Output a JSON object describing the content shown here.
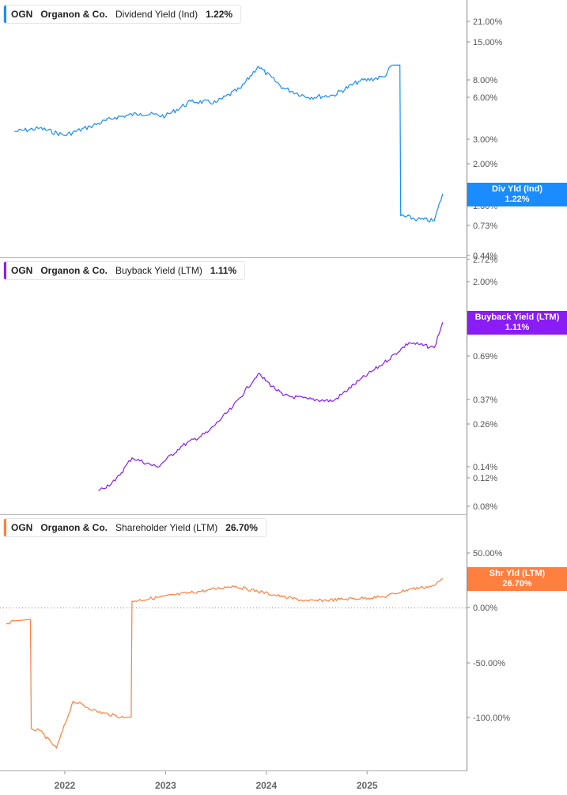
{
  "panels": [
    {
      "legend": {
        "ticker": "OGN",
        "company": "Organon & Co.",
        "metric": "Dividend Yield (Ind)",
        "value": "1.22%"
      },
      "tag": {
        "line1": "Div Yld (Ind)",
        "line2": "1.22%"
      },
      "color": "#1a8cff"
    },
    {
      "legend": {
        "ticker": "OGN",
        "company": "Organon & Co.",
        "metric": "Buyback Yield (LTM)",
        "value": "1.11%"
      },
      "tag": {
        "line1": "Buyback Yield (LTM)",
        "line2": "1.11%"
      },
      "color": "#8a1cf5"
    },
    {
      "legend": {
        "ticker": "OGN",
        "company": "Organon & Co.",
        "metric": "Shareholder Yield (LTM)",
        "value": "26.70%"
      },
      "tag": {
        "line1": "Shr Yld (LTM)",
        "line2": "26.70%"
      },
      "color": "#ff7f3f"
    }
  ],
  "x_axis": {
    "labels": [
      "2022",
      "2023",
      "2024",
      "2025"
    ]
  },
  "chart_data": [
    {
      "type": "line",
      "title": "OGN Organon & Co. Dividend Yield (Ind)",
      "yscale": "log",
      "ytick_labels": [
        "21.00%",
        "15.00%",
        "8.00%",
        "6.00%",
        "3.00%",
        "2.00%",
        "1.00%",
        "0.73%",
        "0.44%"
      ],
      "xtick_labels": [
        "2022",
        "2023",
        "2024",
        "2025"
      ],
      "x": [
        "2021-07",
        "2021-10",
        "2022-01",
        "2022-04",
        "2022-07",
        "2022-10",
        "2023-01",
        "2023-04",
        "2023-07",
        "2023-10",
        "2023-12",
        "2024-03",
        "2024-06",
        "2024-09",
        "2024-12",
        "2025-03",
        "2025-04",
        "2025-05",
        "2025-07",
        "2025-09",
        "2025-10"
      ],
      "series": [
        {
          "name": "Dividend Yield (Ind)",
          "values": [
            3.4,
            3.6,
            3.2,
            3.7,
            4.3,
            4.6,
            4.4,
            5.6,
            5.5,
            7.0,
            10.0,
            7.0,
            6.0,
            6.2,
            7.8,
            8.4,
            10.2,
            0.85,
            0.8,
            0.78,
            1.22
          ]
        }
      ],
      "last_value": "1.22%"
    },
    {
      "type": "line",
      "title": "OGN Organon & Co. Buyback Yield (LTM)",
      "yscale": "log",
      "ytick_labels": [
        "2.72%",
        "2.00%",
        "1.00%",
        "0.69%",
        "0.37%",
        "0.26%",
        "0.14%",
        "0.12%",
        "0.08%"
      ],
      "xtick_labels": [
        "2022",
        "2023",
        "2024",
        "2025"
      ],
      "x": [
        "2022-05",
        "2022-07",
        "2022-09",
        "2022-12",
        "2023-03",
        "2023-06",
        "2023-09",
        "2023-12",
        "2024-03",
        "2024-06",
        "2024-09",
        "2024-12",
        "2025-03",
        "2025-06",
        "2025-09",
        "2025-10"
      ],
      "series": [
        {
          "name": "Buyback Yield (LTM)",
          "values": [
            0.1,
            0.115,
            0.16,
            0.14,
            0.19,
            0.23,
            0.33,
            0.53,
            0.39,
            0.37,
            0.36,
            0.48,
            0.62,
            0.83,
            0.77,
            1.11
          ]
        }
      ],
      "last_value": "1.11%"
    },
    {
      "type": "line",
      "title": "OGN Organon & Co. Shareholder Yield (LTM)",
      "yscale": "linear",
      "ytick_labels": [
        "50.00%",
        "0.00%",
        "-50.00%",
        "-100.00%"
      ],
      "xtick_labels": [
        "2022",
        "2023",
        "2024",
        "2025"
      ],
      "x": [
        "2021-06",
        "2021-07",
        "2021-09",
        "2021-10",
        "2021-12",
        "2022-02",
        "2022-05",
        "2022-08",
        "2022-09",
        "2023-06",
        "2023-09",
        "2024-03",
        "2024-06",
        "2025-03",
        "2025-06",
        "2025-09",
        "2025-10"
      ],
      "series": [
        {
          "name": "Shareholder Yield (LTM)",
          "values": [
            -15,
            -12,
            -110,
            -112,
            -128,
            -85,
            -95,
            -100,
            6,
            16,
            20,
            10,
            6,
            10,
            17,
            20,
            26.7
          ]
        }
      ],
      "last_value": "26.70%",
      "reference_line": 0
    }
  ]
}
